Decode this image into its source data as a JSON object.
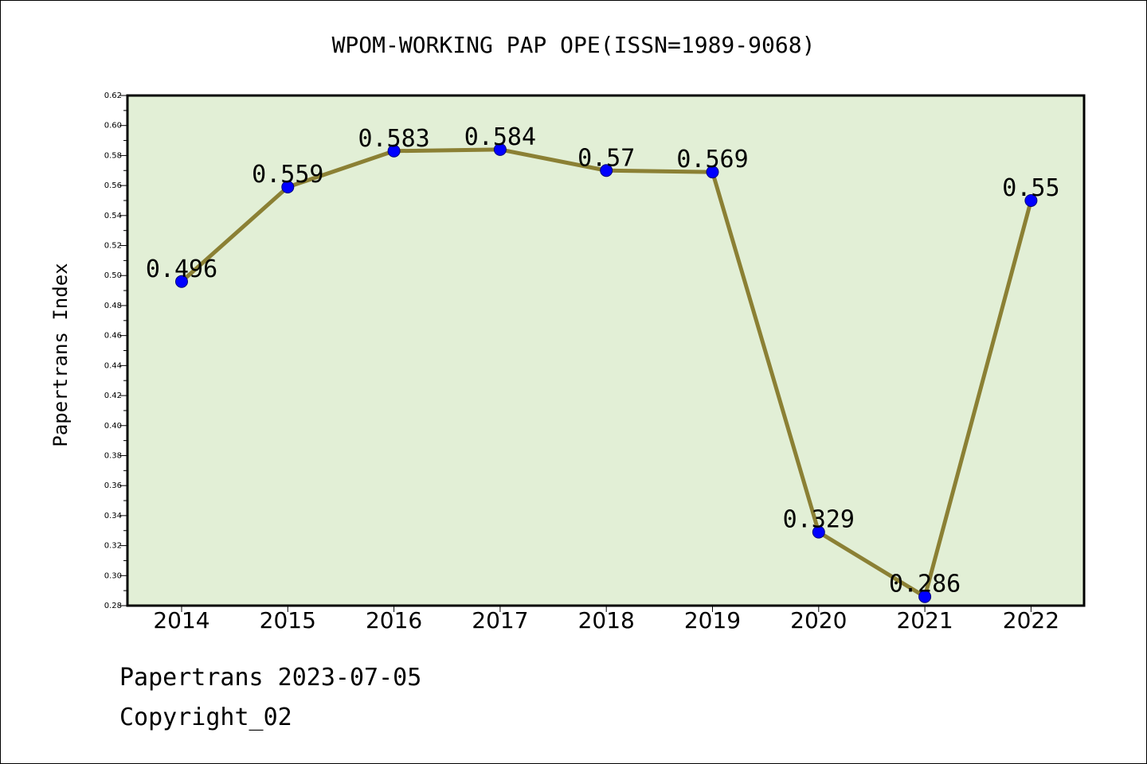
{
  "chart_data": {
    "type": "line",
    "title": "WPOM-WORKING PAP OPE(ISSN=1989-9068)",
    "xlabel": "",
    "ylabel": "Papertrans Index",
    "categories": [
      "2014",
      "2015",
      "2016",
      "2017",
      "2018",
      "2019",
      "2020",
      "2021",
      "2022"
    ],
    "values": [
      0.496,
      0.559,
      0.583,
      0.584,
      0.57,
      0.569,
      0.329,
      0.286,
      0.55
    ],
    "data_labels": [
      "0.496",
      "0.559",
      "0.583",
      "0.584",
      "0.57",
      "0.569",
      "0.329",
      "0.286",
      "0.55"
    ],
    "ylim": [
      0.28,
      0.62
    ],
    "yticks": [
      "0.28",
      "0.30",
      "0.32",
      "0.34",
      "0.36",
      "0.38",
      "0.40",
      "0.42",
      "0.44",
      "0.46",
      "0.48",
      "0.50",
      "0.52",
      "0.54",
      "0.56",
      "0.58",
      "0.60",
      "0.62"
    ],
    "grid": false,
    "legend": "none",
    "colors": {
      "plot_background": "#e2efd6",
      "line": "#8b8034",
      "marker": "#0000ff"
    }
  },
  "footer": {
    "line1": "Papertrans 2023-07-05",
    "line2": "Copyright_02"
  }
}
